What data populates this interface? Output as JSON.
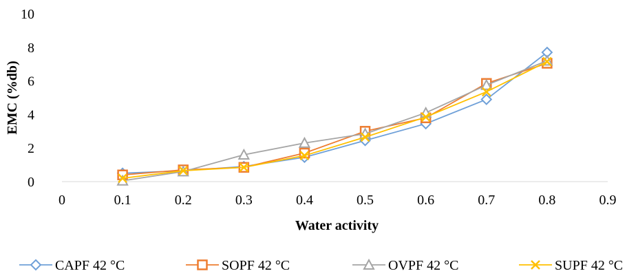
{
  "chart_data": {
    "type": "line",
    "xlabel": "Water activity",
    "ylabel": "EMC (%db)",
    "xlim": [
      0,
      0.9
    ],
    "ylim": [
      0,
      10
    ],
    "xticks": [
      "0",
      "0.1",
      "0.2",
      "0.3",
      "0.4",
      "0.5",
      "0.6",
      "0.7",
      "0.8",
      "0.9"
    ],
    "yticks": [
      "0",
      "2",
      "4",
      "6",
      "8",
      "10"
    ],
    "grid": false,
    "legend_position": "bottom",
    "series": [
      {
        "name": "CAPF 42 °C",
        "marker": "diamond",
        "color": "#6fa0d8",
        "x": [
          0.1,
          0.2,
          0.3,
          0.4,
          0.5,
          0.6,
          0.7,
          0.8
        ],
        "y": [
          0.5,
          0.65,
          0.9,
          1.45,
          2.45,
          3.45,
          4.9,
          7.7
        ]
      },
      {
        "name": "SOPF 42 °C",
        "marker": "square",
        "color": "#ed7d31",
        "x": [
          0.1,
          0.2,
          0.3,
          0.4,
          0.5,
          0.6,
          0.7,
          0.8
        ],
        "y": [
          0.4,
          0.7,
          0.85,
          1.7,
          3.0,
          3.8,
          5.85,
          7.05
        ]
      },
      {
        "name": "OVPF 42 °C",
        "marker": "triangle",
        "color": "#a5a5a5",
        "x": [
          0.1,
          0.2,
          0.3,
          0.4,
          0.5,
          0.6,
          0.7,
          0.8
        ],
        "y": [
          0.05,
          0.6,
          1.6,
          2.3,
          2.85,
          4.1,
          5.75,
          7.2
        ]
      },
      {
        "name": "SUPF 42 °C",
        "marker": "x",
        "color": "#ffc000",
        "x": [
          0.1,
          0.2,
          0.3,
          0.4,
          0.5,
          0.6,
          0.7,
          0.8
        ],
        "y": [
          0.2,
          0.65,
          0.85,
          1.55,
          2.65,
          3.85,
          5.35,
          7.15
        ]
      }
    ]
  }
}
